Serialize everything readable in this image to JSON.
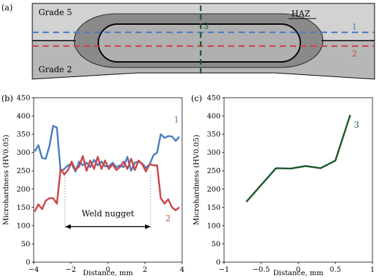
{
  "panel_a": {
    "label": "(a)",
    "top_label": "Grade 5",
    "bottom_label": "Grade 2",
    "haz_label": "HAZ",
    "line_labels": {
      "line1": "1",
      "line2": "2",
      "line3": "3"
    },
    "colors": {
      "line1": "#4a7fc0",
      "line2": "#c9484b",
      "line3": "#1e5a2a",
      "grade5": "#d2d2d2",
      "grade2": "#b7b7b7",
      "haz": "#8a8a8a",
      "nugget": "#b0b0b0"
    }
  },
  "chart_data": [
    {
      "panel": "(b)",
      "type": "line",
      "title": "",
      "xlabel": "Distance, mm",
      "ylabel": "Microhardness (HV0.05)",
      "xlim": [
        -4,
        4
      ],
      "ylim": [
        0,
        450
      ],
      "xticks": [
        -4,
        -2,
        0,
        2,
        4
      ],
      "yticks": [
        0,
        50,
        100,
        150,
        200,
        250,
        300,
        350,
        400,
        450
      ],
      "grid": false,
      "series": [
        {
          "name": "1",
          "color": "#4a7fc0",
          "x": [
            -3.95,
            -3.75,
            -3.55,
            -3.35,
            -3.15,
            -2.95,
            -2.75,
            -2.55,
            -2.35,
            -2.15,
            -1.95,
            -1.75,
            -1.55,
            -1.35,
            -1.15,
            -0.95,
            -0.75,
            -0.55,
            -0.35,
            -0.15,
            0.05,
            0.25,
            0.45,
            0.65,
            0.85,
            1.05,
            1.25,
            1.45,
            1.65,
            1.85,
            2.05,
            2.25,
            2.45,
            2.65,
            2.85,
            3.05,
            3.25,
            3.45,
            3.65,
            3.85
          ],
          "y": [
            303,
            320,
            285,
            283,
            318,
            373,
            368,
            248,
            255,
            265,
            268,
            248,
            275,
            265,
            272,
            260,
            280,
            265,
            275,
            262,
            262,
            272,
            260,
            265,
            260,
            288,
            250,
            272,
            275,
            270,
            258,
            268,
            292,
            300,
            350,
            340,
            345,
            344,
            332,
            343
          ]
        },
        {
          "name": "2",
          "color": "#c9484b",
          "x": [
            -3.95,
            -3.75,
            -3.55,
            -3.35,
            -3.15,
            -2.95,
            -2.75,
            -2.55,
            -2.35,
            -2.15,
            -1.95,
            -1.75,
            -1.55,
            -1.35,
            -1.15,
            -0.95,
            -0.75,
            -0.55,
            -0.35,
            -0.15,
            0.05,
            0.25,
            0.45,
            0.65,
            0.85,
            1.05,
            1.25,
            1.45,
            1.65,
            1.85,
            2.05,
            2.25,
            2.45,
            2.65,
            2.85,
            3.05,
            3.25,
            3.45,
            3.65,
            3.85
          ],
          "y": [
            138,
            158,
            145,
            168,
            175,
            175,
            160,
            255,
            240,
            252,
            275,
            252,
            262,
            290,
            250,
            278,
            255,
            288,
            255,
            278,
            255,
            268,
            252,
            260,
            275,
            255,
            283,
            252,
            278,
            268,
            248,
            268,
            265,
            265,
            175,
            160,
            172,
            150,
            142,
            150
          ]
        }
      ],
      "annotations": {
        "series1_label": "1",
        "series2_label": "2",
        "weld_nugget_label": "Weld nugget",
        "nugget_start_x": -2.3,
        "nugget_end_x": 2.3
      }
    },
    {
      "panel": "(c)",
      "type": "line",
      "title": "",
      "xlabel": "Distance, mm",
      "ylabel": "Microhardness (HV0.05)",
      "xlim": [
        -1,
        1
      ],
      "ylim": [
        0,
        450
      ],
      "xticks": [
        -1,
        -0.5,
        0,
        0.5,
        1
      ],
      "yticks": [
        0,
        50,
        100,
        150,
        200,
        250,
        300,
        350,
        400,
        450
      ],
      "grid": false,
      "series": [
        {
          "name": "3",
          "color": "#1e5a2a",
          "x": [
            -0.7,
            -0.3,
            -0.1,
            0.1,
            0.3,
            0.5,
            0.7
          ],
          "y": [
            165,
            257,
            256,
            263,
            257,
            278,
            403
          ]
        }
      ],
      "annotations": {
        "series3_label": "3"
      }
    }
  ]
}
